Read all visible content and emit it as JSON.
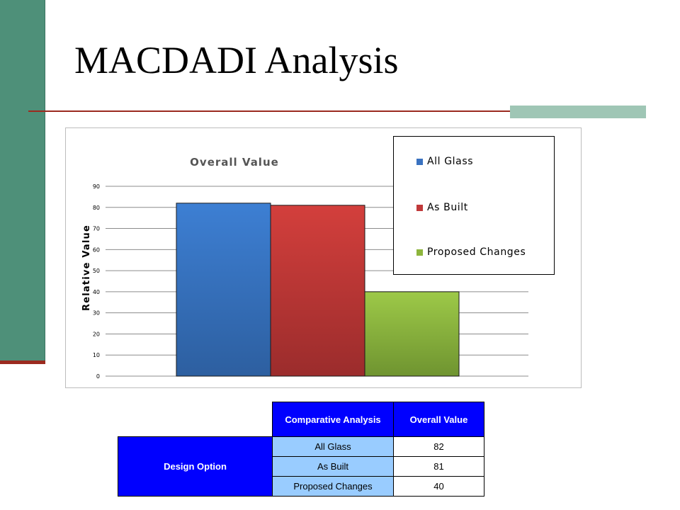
{
  "slide": {
    "title": "MACDADI Analysis"
  },
  "chart_data": {
    "type": "bar",
    "title": "Overall Value",
    "xlabel": "",
    "ylabel": "Relative Value",
    "ylim": [
      0,
      90
    ],
    "yticks": [
      0,
      10,
      20,
      30,
      40,
      50,
      60,
      70,
      80,
      90
    ],
    "grid": true,
    "legend_position": "top-right",
    "series": [
      {
        "name": "All Glass",
        "values": [
          82
        ],
        "color": "#3a72c0"
      },
      {
        "name": "As Built",
        "values": [
          81
        ],
        "color": "#c0393a"
      },
      {
        "name": "Proposed Changes",
        "values": [
          40
        ],
        "color": "#8db53c"
      }
    ]
  },
  "table": {
    "header": {
      "comparative": "Comparative Analysis",
      "overall": "Overall Value"
    },
    "row_label": "Design Option",
    "rows": [
      {
        "option": "All Glass",
        "value": "82"
      },
      {
        "option": "As Built",
        "value": "81"
      },
      {
        "option": "Proposed Changes",
        "value": "40"
      }
    ]
  }
}
